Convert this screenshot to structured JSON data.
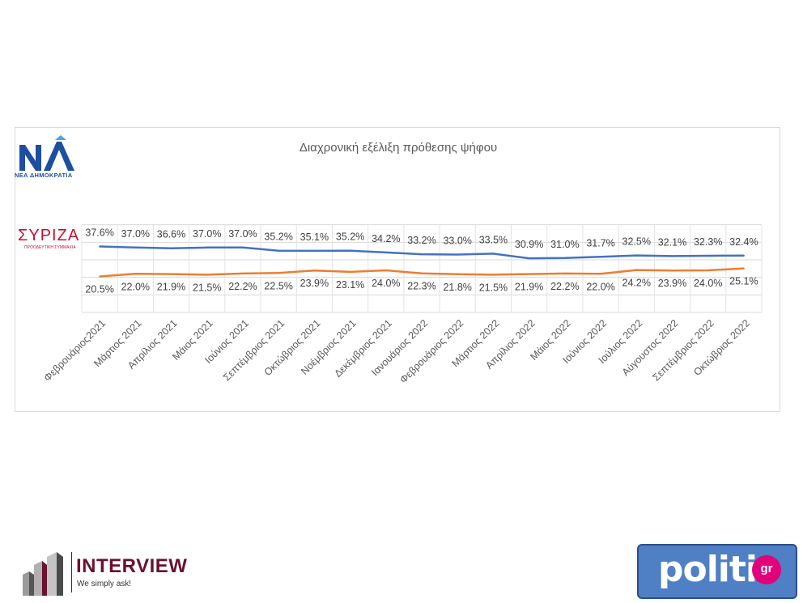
{
  "chart_data": {
    "type": "line",
    "title": "Διαχρονική εξέλιξη πρόθεσης ψήφου",
    "categories": [
      "Φεβρουάριος2021",
      "Μάρτιος 2021",
      "Απρίλιος 2021",
      "Μάιος 2021",
      "Ιούνιος 2021",
      "Σεπτέμβριος 2021",
      "Οκτώβριος 2021",
      "Νοέμβριος 2021",
      "Δεκέμβριος 2021",
      "Ιανουάριος 2022",
      "Φεβρουάριος 2022",
      "Μάρτιος 2022",
      "Απρίλιος 2022",
      "Μάιος 2022",
      "Ιούνιος 2022",
      "Ιούλιος 2022",
      "Αύγουστος 2022",
      "Σεπτέμβριος 2022",
      "Οκτώβριος 2022"
    ],
    "series": [
      {
        "values": [
          37.6,
          37.0,
          36.6,
          37.0,
          37.0,
          35.2,
          35.1,
          35.2,
          34.2,
          33.2,
          33.0,
          33.5,
          30.9,
          31.0,
          31.7,
          32.5,
          32.1,
          32.3,
          32.4
        ],
        "labels": [
          "37.6%",
          "37.0%",
          "36.6%",
          "37.0%",
          "37.0%",
          "35.2%",
          "35.1%",
          "35.2%",
          "34.2%",
          "33.2%",
          "33.0%",
          "33.5%",
          "30.9%",
          "31.0%",
          "31.7%",
          "32.5%",
          "32.1%",
          "32.3%",
          "32.4%"
        ],
        "color": "#4472c4"
      },
      {
        "values": [
          20.5,
          22.0,
          21.9,
          21.5,
          22.2,
          22.5,
          23.9,
          23.1,
          24.0,
          22.3,
          21.8,
          21.5,
          21.9,
          22.2,
          22.0,
          24.2,
          23.9,
          24.0,
          25.1
        ],
        "labels": [
          "20.5%",
          "22.0%",
          "21.9%",
          "21.5%",
          "22.2%",
          "22.5%",
          "23.9%",
          "23.1%",
          "24.0%",
          "22.3%",
          "21.8%",
          "21.5%",
          "21.9%",
          "22.2%",
          "22.0%",
          "24.2%",
          "23.9%",
          "24.0%",
          "25.1%"
        ],
        "color": "#ed7d31"
      }
    ],
    "ylim": [
      0,
      50
    ],
    "y_gridlines": [
      0,
      10,
      20,
      30,
      40,
      50
    ],
    "grid": true,
    "legend": "logos-left"
  },
  "logos": {
    "nd_text": "ΝΕΑ ΔΗΜΟΚΡΑΤΙΑ",
    "syriza_text": "ΣΥΡΙΖΑ",
    "syriza_sub": "ΠΡΟΟΔΕΥΤΙΚΗ ΣΥΜΜΑΧΙΑ",
    "interview_title": "INTERVIEW",
    "interview_tag": "We simply ask!",
    "politic_text": "politic",
    "politic_gr": "gr"
  },
  "colors": {
    "nd_blue": "#1d4fa0",
    "syriza_red": "#c8102e",
    "interview_wine": "#6b1030",
    "politic_badge": "#4f7fc4",
    "politic_dot": "#e2007a"
  }
}
